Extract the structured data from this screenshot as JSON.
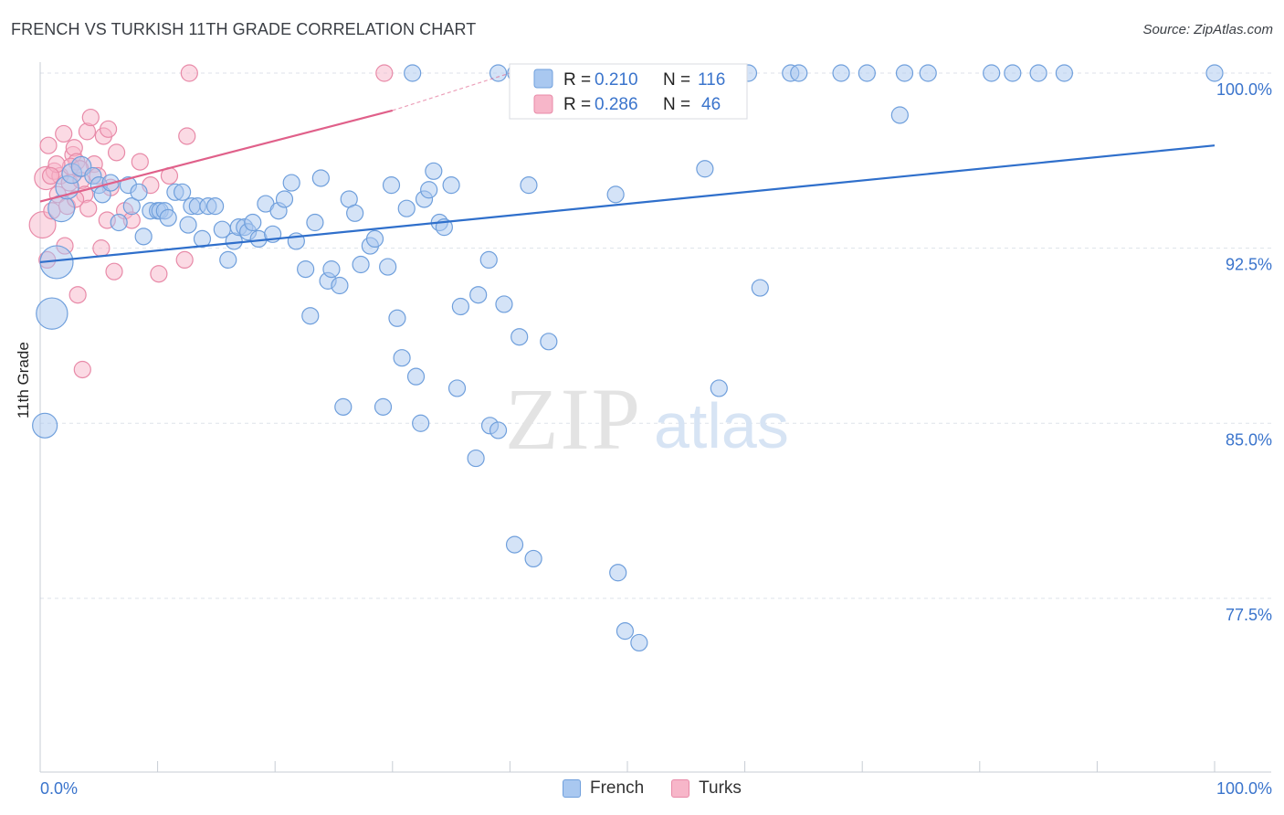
{
  "header": {
    "title": "FRENCH VS TURKISH 11TH GRADE CORRELATION CHART",
    "source": "Source: ZipAtlas.com"
  },
  "watermark": {
    "zip": "ZIP",
    "atlas": "atlas"
  },
  "legend": {
    "r_label": "R =",
    "n_label": "N =",
    "french": {
      "r": "0.210",
      "n": "116"
    },
    "turks": {
      "r": "0.286",
      "n": "46"
    }
  },
  "colors": {
    "french_fill": "#a9c8f0",
    "french_stroke": "#6f9fdc",
    "french_line": "#2f6fcb",
    "turks_fill": "#f7b6c9",
    "turks_stroke": "#e88aa8",
    "turks_line": "#e0608a",
    "axis_text": "#3a74cc",
    "grid": "#dde2ea"
  },
  "chart_data": {
    "type": "scatter",
    "title": "FRENCH VS TURKISH 11TH GRADE CORRELATION CHART",
    "xlabel": "",
    "ylabel": "11th Grade",
    "xlim": [
      0,
      100
    ],
    "ylim": [
      70,
      100.8
    ],
    "x_tick_labels": [
      "0.0%",
      "100.0%"
    ],
    "y_ticks": [
      {
        "value": 100.0,
        "label": "100.0%"
      },
      {
        "value": 92.5,
        "label": "92.5%"
      },
      {
        "value": 85.0,
        "label": "85.0%"
      },
      {
        "value": 77.5,
        "label": "77.5%"
      }
    ],
    "series": [
      {
        "name": "French",
        "color": "french",
        "trend": {
          "x0": 0,
          "y0": 91.9,
          "x1": 100,
          "y1": 96.9
        },
        "points": [
          [
            0.4,
            84.9,
            1.5
          ],
          [
            1.0,
            89.7,
            1.9
          ],
          [
            1.4,
            91.9,
            2.0
          ],
          [
            1.8,
            94.2,
            1.6
          ],
          [
            2.3,
            95.1,
            1.4
          ],
          [
            2.7,
            95.7,
            1.2
          ],
          [
            3.5,
            96.0,
            1.2
          ],
          [
            4.5,
            95.6,
            1.0
          ],
          [
            5.0,
            95.2,
            1.0
          ],
          [
            5.3,
            94.8,
            1.0
          ],
          [
            6.0,
            95.3,
            1.0
          ],
          [
            6.7,
            93.6,
            1.0
          ],
          [
            7.5,
            95.2,
            1.0
          ],
          [
            7.8,
            94.3,
            1.0
          ],
          [
            8.4,
            94.9,
            1.0
          ],
          [
            8.8,
            93.0,
            1.0
          ],
          [
            9.4,
            94.1,
            1.0
          ],
          [
            10.0,
            94.1,
            1.0
          ],
          [
            10.2,
            94.1,
            1.0
          ],
          [
            10.6,
            94.1,
            1.0
          ],
          [
            10.9,
            93.8,
            1.0
          ],
          [
            11.5,
            94.9,
            1.0
          ],
          [
            12.1,
            94.9,
            1.0
          ],
          [
            12.6,
            93.5,
            1.0
          ],
          [
            12.9,
            94.3,
            1.0
          ],
          [
            13.4,
            94.3,
            1.0
          ],
          [
            13.8,
            92.9,
            1.0
          ],
          [
            14.3,
            94.3,
            1.0
          ],
          [
            14.9,
            94.3,
            1.0
          ],
          [
            15.5,
            93.3,
            1.0
          ],
          [
            16.0,
            92.0,
            1.0
          ],
          [
            16.5,
            92.8,
            1.0
          ],
          [
            16.9,
            93.4,
            1.0
          ],
          [
            17.4,
            93.4,
            1.0
          ],
          [
            17.7,
            93.2,
            1.0
          ],
          [
            18.1,
            93.6,
            1.0
          ],
          [
            18.6,
            92.9,
            1.0
          ],
          [
            19.2,
            94.4,
            1.0
          ],
          [
            19.8,
            93.1,
            1.0
          ],
          [
            20.3,
            94.1,
            1.0
          ],
          [
            20.8,
            94.6,
            1.0
          ],
          [
            21.4,
            95.3,
            1.0
          ],
          [
            21.8,
            92.8,
            1.0
          ],
          [
            22.6,
            91.6,
            1.0
          ],
          [
            23.0,
            89.6,
            1.0
          ],
          [
            23.4,
            93.6,
            1.0
          ],
          [
            23.9,
            95.5,
            1.0
          ],
          [
            24.5,
            91.1,
            1.0
          ],
          [
            24.8,
            91.6,
            1.0
          ],
          [
            25.5,
            90.9,
            1.0
          ],
          [
            25.8,
            85.7,
            1.0
          ],
          [
            26.3,
            94.6,
            1.0
          ],
          [
            26.8,
            94.0,
            1.0
          ],
          [
            27.3,
            91.8,
            1.0
          ],
          [
            28.1,
            92.6,
            1.0
          ],
          [
            28.5,
            92.9,
            1.0
          ],
          [
            29.2,
            85.7,
            1.0
          ],
          [
            29.6,
            91.7,
            1.0
          ],
          [
            29.9,
            95.2,
            1.0
          ],
          [
            30.4,
            89.5,
            1.0
          ],
          [
            30.8,
            87.8,
            1.0
          ],
          [
            31.2,
            94.2,
            1.0
          ],
          [
            32.0,
            87.0,
            1.0
          ],
          [
            32.4,
            85.0,
            1.0
          ],
          [
            32.7,
            94.6,
            1.0
          ],
          [
            33.1,
            95.0,
            1.0
          ],
          [
            33.5,
            95.8,
            1.0
          ],
          [
            34.0,
            93.6,
            1.0
          ],
          [
            34.4,
            93.4,
            1.0
          ],
          [
            35.0,
            95.2,
            1.0
          ],
          [
            35.5,
            86.5,
            1.0
          ],
          [
            35.8,
            90.0,
            1.0
          ],
          [
            37.1,
            83.5,
            1.0
          ],
          [
            37.3,
            90.5,
            1.0
          ],
          [
            38.3,
            84.9,
            1.0
          ],
          [
            39.0,
            84.7,
            1.0
          ],
          [
            38.2,
            92.0,
            1.0
          ],
          [
            39.5,
            90.1,
            1.0
          ],
          [
            40.4,
            79.8,
            1.0
          ],
          [
            40.8,
            88.7,
            1.0
          ],
          [
            41.6,
            95.2,
            1.0
          ],
          [
            42.0,
            79.2,
            1.0
          ],
          [
            43.3,
            88.5,
            1.0
          ],
          [
            49.2,
            78.6,
            1.0
          ],
          [
            49.8,
            76.1,
            1.0
          ],
          [
            51.0,
            75.6,
            1.0
          ],
          [
            49.0,
            94.8,
            1.0
          ],
          [
            56.6,
            95.9,
            1.0
          ],
          [
            57.8,
            86.5,
            1.0
          ],
          [
            61.3,
            90.8,
            1.0
          ],
          [
            73.2,
            98.2,
            1.0
          ],
          [
            31.7,
            100.0,
            1.0
          ],
          [
            39.0,
            100.0,
            1.0
          ],
          [
            40.5,
            100.0,
            1.0
          ],
          [
            41.5,
            100.0,
            1.0
          ],
          [
            43.0,
            100.0,
            1.0
          ],
          [
            45.3,
            100.0,
            1.0
          ],
          [
            47.5,
            100.0,
            1.0
          ],
          [
            51.0,
            100.0,
            1.0
          ],
          [
            52.1,
            100.0,
            1.0
          ],
          [
            54.3,
            100.0,
            1.0
          ],
          [
            55.9,
            100.0,
            1.0
          ],
          [
            58.1,
            100.0,
            1.0
          ],
          [
            60.3,
            100.0,
            1.0
          ],
          [
            63.9,
            100.0,
            1.0
          ],
          [
            64.6,
            100.0,
            1.0
          ],
          [
            68.2,
            100.0,
            1.0
          ],
          [
            70.4,
            100.0,
            1.0
          ],
          [
            73.6,
            100.0,
            1.0
          ],
          [
            75.6,
            100.0,
            1.0
          ],
          [
            81.0,
            100.0,
            1.0
          ],
          [
            82.8,
            100.0,
            1.0
          ],
          [
            85.0,
            100.0,
            1.0
          ],
          [
            87.2,
            100.0,
            1.0
          ],
          [
            100.0,
            100.0,
            1.0
          ]
        ]
      },
      {
        "name": "Turks",
        "color": "turks",
        "trend": {
          "x0": 0,
          "y0": 94.5,
          "x1": 30,
          "y1": 98.4
        },
        "trend_dashed_to": {
          "x": 40,
          "y": 100.0
        },
        "points": [
          [
            0.2,
            93.5,
            1.6
          ],
          [
            0.5,
            95.5,
            1.4
          ],
          [
            0.7,
            96.9,
            1.0
          ],
          [
            1.0,
            94.1,
            1.0
          ],
          [
            1.2,
            95.8,
            1.0
          ],
          [
            1.5,
            94.8,
            1.0
          ],
          [
            1.7,
            95.6,
            1.0
          ],
          [
            2.0,
            97.4,
            1.0
          ],
          [
            2.1,
            92.6,
            1.0
          ],
          [
            2.3,
            94.3,
            1.0
          ],
          [
            2.5,
            95.3,
            1.0
          ],
          [
            2.8,
            96.5,
            1.0
          ],
          [
            2.9,
            96.8,
            1.0
          ],
          [
            3.1,
            96.2,
            1.0
          ],
          [
            3.2,
            90.5,
            1.0
          ],
          [
            3.5,
            95.4,
            1.0
          ],
          [
            3.6,
            87.3,
            1.0
          ],
          [
            3.8,
            94.8,
            1.0
          ],
          [
            4.0,
            97.5,
            1.0
          ],
          [
            4.1,
            94.2,
            1.0
          ],
          [
            4.3,
            98.1,
            1.0
          ],
          [
            4.6,
            96.1,
            1.0
          ],
          [
            4.9,
            95.6,
            1.0
          ],
          [
            5.2,
            92.5,
            1.0
          ],
          [
            5.4,
            97.3,
            1.0
          ],
          [
            5.7,
            93.7,
            1.0
          ],
          [
            6.3,
            91.5,
            1.0
          ],
          [
            6.5,
            96.6,
            1.0
          ],
          [
            7.2,
            94.1,
            1.0
          ],
          [
            7.8,
            93.7,
            1.0
          ],
          [
            8.5,
            96.2,
            1.0
          ],
          [
            9.4,
            95.2,
            1.0
          ],
          [
            10.1,
            91.4,
            1.0
          ],
          [
            11.0,
            95.6,
            1.0
          ],
          [
            12.3,
            92.0,
            1.0
          ],
          [
            12.5,
            97.3,
            1.0
          ],
          [
            12.7,
            100.0,
            1.0
          ],
          [
            29.3,
            100.0,
            1.0
          ],
          [
            5.8,
            97.6,
            1.0
          ],
          [
            2.6,
            96.0,
            1.0
          ],
          [
            3.0,
            94.6,
            1.0
          ],
          [
            1.4,
            96.1,
            1.0
          ],
          [
            0.9,
            95.6,
            1.0
          ],
          [
            3.4,
            95.9,
            1.0
          ],
          [
            0.6,
            92.0,
            1.0
          ],
          [
            6.0,
            95.1,
            1.0
          ]
        ]
      }
    ]
  }
}
